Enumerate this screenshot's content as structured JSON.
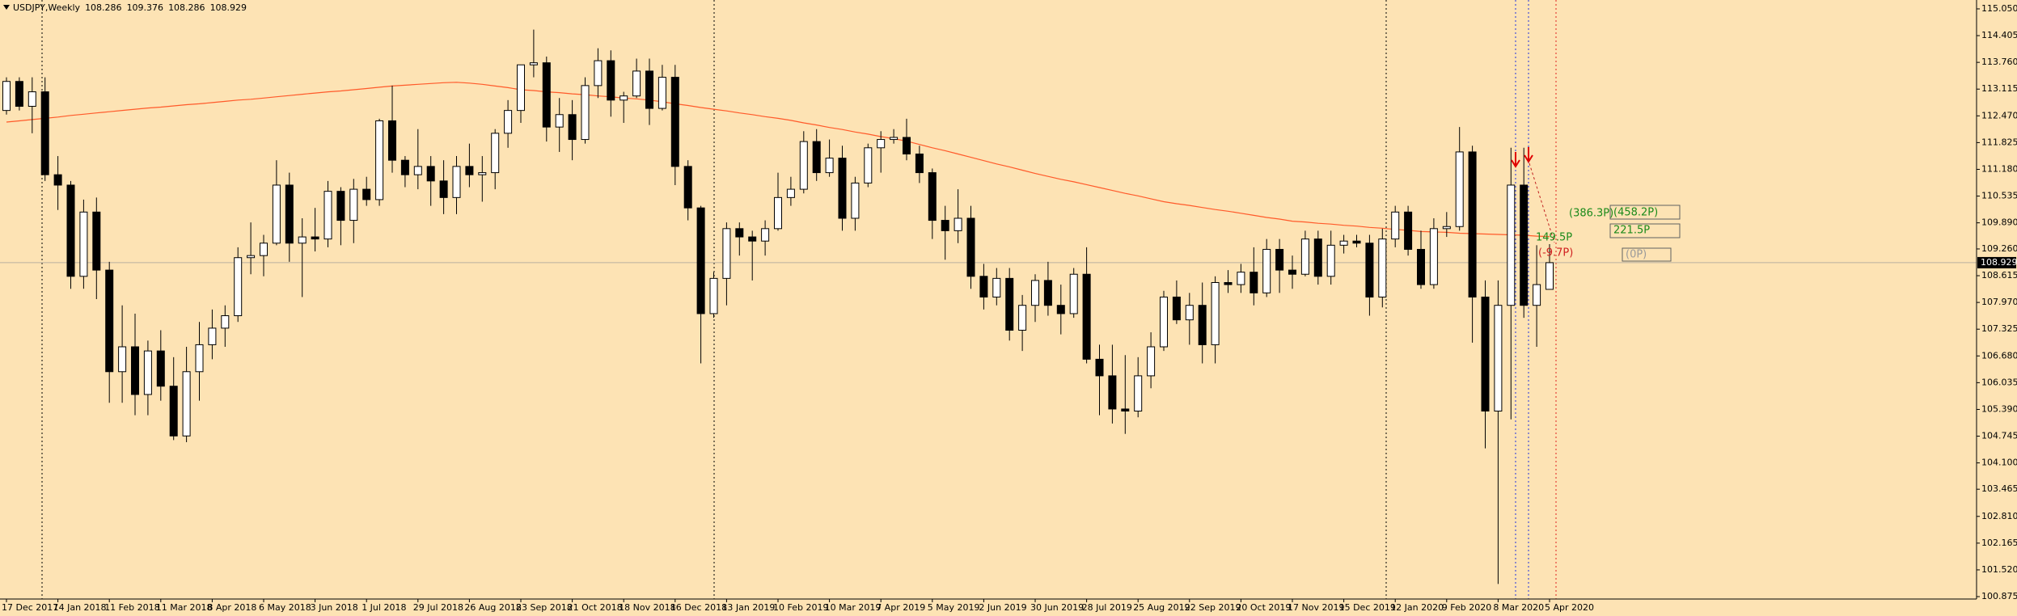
{
  "chart_data": {
    "type": "candlestick",
    "title": "USDJPY,Weekly",
    "categories": [
      "17 Dec 2017",
      null,
      null,
      null,
      "14 Jan 2018",
      null,
      null,
      null,
      "11 Feb 2018",
      null,
      null,
      null,
      "11 Mar 2018",
      null,
      null,
      null,
      "8 Apr 2018",
      null,
      null,
      null,
      "6 May 2018",
      null,
      null,
      null,
      "3 Jun 2018",
      null,
      null,
      null,
      "1 Jul 2018",
      null,
      null,
      null,
      "29 Jul 2018",
      null,
      null,
      null,
      "26 Aug 2018",
      null,
      null,
      null,
      "23 Sep 2018",
      null,
      null,
      null,
      "21 Oct 2018",
      null,
      null,
      null,
      "18 Nov 2018",
      null,
      null,
      null,
      "16 Dec 2018",
      null,
      null,
      null,
      "13 Jan 2019",
      null,
      null,
      null,
      "10 Feb 2019",
      null,
      null,
      null,
      "10 Mar 2019",
      null,
      null,
      null,
      "7 Apr 2019",
      null,
      null,
      null,
      "5 May 2019",
      null,
      null,
      null,
      "2 Jun 2019",
      null,
      null,
      null,
      "30 Jun 2019",
      null,
      null,
      null,
      "28 Jul 2019",
      null,
      null,
      null,
      "25 Aug 2019",
      null,
      null,
      null,
      "22 Sep 2019",
      null,
      null,
      null,
      "20 Oct 2019",
      null,
      null,
      null,
      "17 Nov 2019",
      null,
      null,
      null,
      "15 Dec 2019",
      null,
      null,
      null,
      "12 Jan 2020",
      null,
      null,
      null,
      "9 Feb 2020",
      null,
      null,
      null,
      "8 Mar 2020",
      null,
      null,
      null,
      "5 Apr 2020"
    ],
    "open": [
      112.6,
      113.3,
      112.7,
      113.05,
      111.05,
      110.8,
      108.6,
      110.15,
      108.75,
      106.3,
      106.9,
      105.75,
      106.8,
      105.95,
      104.75,
      106.3,
      106.95,
      107.35,
      107.65,
      109.05,
      109.1,
      109.4,
      110.8,
      109.4,
      109.55,
      109.5,
      110.65,
      109.95,
      110.7,
      110.45,
      112.35,
      111.4,
      111.05,
      111.25,
      110.9,
      110.5,
      111.25,
      111.05,
      111.1,
      112.05,
      112.6,
      113.7,
      113.75,
      112.2,
      112.5,
      111.9,
      113.2,
      113.8,
      112.85,
      112.95,
      113.55,
      112.65,
      113.4,
      111.25,
      110.25,
      107.7,
      108.55,
      109.75,
      109.55,
      109.45,
      109.75,
      110.5,
      110.7,
      111.85,
      111.1,
      111.45,
      110.0,
      110.85,
      111.7,
      111.9,
      111.95,
      111.55,
      111.1,
      109.95,
      109.7,
      110.0,
      108.6,
      108.1,
      108.55,
      107.3,
      107.9,
      108.5,
      107.9,
      107.7,
      108.65,
      106.6,
      106.2,
      105.4,
      105.35,
      106.2,
      106.9,
      108.1,
      107.55,
      107.9,
      106.95,
      108.45,
      108.4,
      108.7,
      108.2,
      109.25,
      108.75,
      108.65,
      109.5,
      108.6,
      109.35,
      109.45,
      109.4,
      108.1,
      109.5,
      110.15,
      109.25,
      108.4,
      109.75,
      109.8,
      111.6,
      108.1,
      105.35,
      107.9,
      110.8,
      107.9,
      108.286
    ],
    "high": [
      113.4,
      113.4,
      113.4,
      113.4,
      111.5,
      110.9,
      110.45,
      110.5,
      108.95,
      107.9,
      107.7,
      107.05,
      107.3,
      106.65,
      106.9,
      107.5,
      107.8,
      107.9,
      109.3,
      109.9,
      109.6,
      111.4,
      111.1,
      110.0,
      110.25,
      110.9,
      110.75,
      110.95,
      111.0,
      112.4,
      113.2,
      111.5,
      112.15,
      111.5,
      111.4,
      111.5,
      111.8,
      111.5,
      112.15,
      112.85,
      113.7,
      114.55,
      113.9,
      112.9,
      112.85,
      113.4,
      114.1,
      114.05,
      113.05,
      113.85,
      113.85,
      113.7,
      113.7,
      111.4,
      110.3,
      108.7,
      109.9,
      109.9,
      109.7,
      109.95,
      111.1,
      111.0,
      112.1,
      112.15,
      111.9,
      111.75,
      111.0,
      111.8,
      112.1,
      112.15,
      112.4,
      111.75,
      111.2,
      110.3,
      110.7,
      110.3,
      108.9,
      108.8,
      108.8,
      108.15,
      108.65,
      108.95,
      108.4,
      108.8,
      109.3,
      106.95,
      106.95,
      106.7,
      106.65,
      107.25,
      108.25,
      108.5,
      108.2,
      108.45,
      108.6,
      108.75,
      108.9,
      109.3,
      109.5,
      109.5,
      109.1,
      109.7,
      109.7,
      109.7,
      109.6,
      109.6,
      109.6,
      109.75,
      110.3,
      110.3,
      109.7,
      110.0,
      110.15,
      112.2,
      111.75,
      108.5,
      108.5,
      111.7,
      111.7,
      109.35,
      109.376
    ],
    "low": [
      112.5,
      112.6,
      112.05,
      110.9,
      110.2,
      108.3,
      108.3,
      108.05,
      105.55,
      105.55,
      105.25,
      105.25,
      105.6,
      104.65,
      104.6,
      105.6,
      106.6,
      106.9,
      107.5,
      108.65,
      108.6,
      109.35,
      108.95,
      108.1,
      109.2,
      109.3,
      109.35,
      109.4,
      110.3,
      110.3,
      111.1,
      110.75,
      110.7,
      110.3,
      110.1,
      110.1,
      110.75,
      110.4,
      110.7,
      111.7,
      112.3,
      113.4,
      111.85,
      111.6,
      111.4,
      111.8,
      112.9,
      112.45,
      112.3,
      112.9,
      112.25,
      112.6,
      110.8,
      109.95,
      106.5,
      107.6,
      107.9,
      109.1,
      108.5,
      109.1,
      109.7,
      110.3,
      110.6,
      110.9,
      111.0,
      109.7,
      109.7,
      110.75,
      111.1,
      111.8,
      111.4,
      110.85,
      109.5,
      109.0,
      109.4,
      108.3,
      107.8,
      107.9,
      107.05,
      106.8,
      107.5,
      107.65,
      107.2,
      107.6,
      106.5,
      105.25,
      105.05,
      104.8,
      105.2,
      105.9,
      106.8,
      107.45,
      106.95,
      106.5,
      106.5,
      108.2,
      108.2,
      107.9,
      108.1,
      108.2,
      108.3,
      108.6,
      108.4,
      108.4,
      109.15,
      109.3,
      107.65,
      107.85,
      109.3,
      109.1,
      108.3,
      108.3,
      109.55,
      109.7,
      107.0,
      104.45,
      101.18,
      105.15,
      107.6,
      106.9,
      108.286
    ],
    "close": [
      113.3,
      112.7,
      113.05,
      111.05,
      110.8,
      108.6,
      110.15,
      108.75,
      106.3,
      106.9,
      105.75,
      106.8,
      105.95,
      104.75,
      106.3,
      106.95,
      107.35,
      107.65,
      109.05,
      109.1,
      109.4,
      110.8,
      109.4,
      109.55,
      109.5,
      110.65,
      109.95,
      110.7,
      110.45,
      112.35,
      111.4,
      111.05,
      111.25,
      110.9,
      110.5,
      111.25,
      111.05,
      111.1,
      112.05,
      112.6,
      113.7,
      113.75,
      112.2,
      112.5,
      111.9,
      113.2,
      113.8,
      112.85,
      112.95,
      113.55,
      112.65,
      113.4,
      111.25,
      110.25,
      107.7,
      108.55,
      109.75,
      109.55,
      109.45,
      109.75,
      110.5,
      110.7,
      111.85,
      111.1,
      111.45,
      110.0,
      110.85,
      111.7,
      111.9,
      111.95,
      111.55,
      111.1,
      109.95,
      109.7,
      110.0,
      108.6,
      108.1,
      108.55,
      107.3,
      107.9,
      108.5,
      107.9,
      107.7,
      108.65,
      106.6,
      106.2,
      105.4,
      105.35,
      106.2,
      106.9,
      108.1,
      107.55,
      107.9,
      106.95,
      108.45,
      108.4,
      108.7,
      108.2,
      109.25,
      108.75,
      108.65,
      109.5,
      108.6,
      109.35,
      109.45,
      109.4,
      108.1,
      109.5,
      110.15,
      109.25,
      108.4,
      109.75,
      109.8,
      111.6,
      108.1,
      105.35,
      107.9,
      110.8,
      107.9,
      108.4,
      108.929
    ],
    "ma": {
      "color": "#ff5a2a",
      "values": [
        112.32,
        112.35,
        112.38,
        112.41,
        112.44,
        112.48,
        112.51,
        112.54,
        112.57,
        112.6,
        112.63,
        112.66,
        112.68,
        112.71,
        112.74,
        112.76,
        112.79,
        112.82,
        112.85,
        112.87,
        112.9,
        112.93,
        112.96,
        112.99,
        113.02,
        113.05,
        113.07,
        113.1,
        113.13,
        113.16,
        113.19,
        113.21,
        113.23,
        113.25,
        113.27,
        113.28,
        113.26,
        113.23,
        113.19,
        113.15,
        113.1,
        113.08,
        113.05,
        113.03,
        113.0,
        112.98,
        112.95,
        112.93,
        112.9,
        112.88,
        112.85,
        112.81,
        112.76,
        112.72,
        112.67,
        112.63,
        112.59,
        112.54,
        112.5,
        112.45,
        112.41,
        112.36,
        112.3,
        112.25,
        112.19,
        112.14,
        112.08,
        112.03,
        111.97,
        111.92,
        111.86,
        111.78,
        111.7,
        111.63,
        111.55,
        111.47,
        111.39,
        111.31,
        111.24,
        111.16,
        111.08,
        111.01,
        110.94,
        110.88,
        110.81,
        110.74,
        110.67,
        110.6,
        110.54,
        110.47,
        110.4,
        110.35,
        110.31,
        110.26,
        110.21,
        110.17,
        110.12,
        110.07,
        110.02,
        109.98,
        109.93,
        109.91,
        109.88,
        109.86,
        109.83,
        109.81,
        109.78,
        109.76,
        109.73,
        109.71,
        109.68,
        109.67,
        109.66,
        109.64,
        109.63,
        109.62,
        109.61,
        109.6,
        109.59,
        109.57,
        109.56
      ]
    },
    "ylim": [
      100.817,
      115.264
    ],
    "yticks": [
      {
        "value": 115.05,
        "label": "115.050"
      },
      114.405,
      {
        "value": 113.76,
        "label": "113.760"
      },
      113.115,
      {
        "value": 112.47,
        "label": "112.470"
      },
      111.825,
      {
        "value": 111.18,
        "label": "111.180"
      },
      110.535,
      {
        "value": 109.89,
        "label": "109.890"
      },
      {
        "value": 109.26,
        "label": "109.260"
      },
      108.615,
      {
        "value": 107.97,
        "label": "107.970"
      },
      107.325,
      {
        "value": 106.68,
        "label": "106.680"
      },
      106.035,
      {
        "value": 105.39,
        "label": "105.390"
      },
      104.745,
      {
        "value": 104.1,
        "label": "104.100"
      },
      103.465,
      {
        "value": 102.81,
        "label": "102.810"
      },
      102.165,
      {
        "value": 101.52,
        "label": "101.520"
      },
      100.875
    ],
    "annotations": [
      "(386.3P)",
      "149.5P",
      "(-9.7P)",
      "(458.2P)",
      "221.5P",
      "(0P)"
    ]
  }
}
